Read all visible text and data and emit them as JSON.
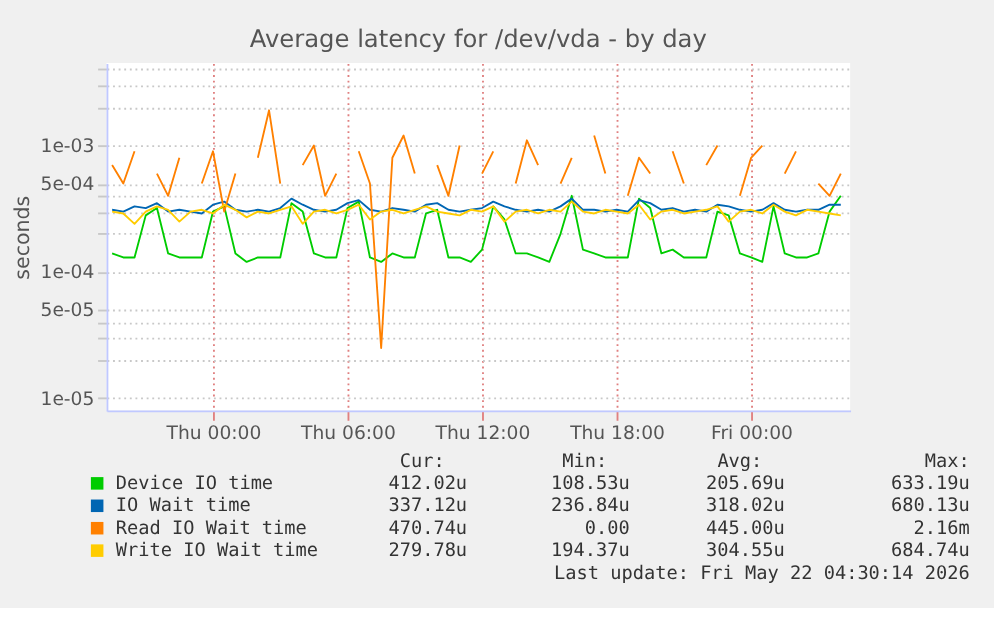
{
  "chart_data": {
    "type": "line",
    "title": "Average latency for /dev/vda - by day",
    "ylabel": "seconds",
    "x": [
      "2026-05-20T19:30",
      "2026-05-20T20:00",
      "2026-05-20T20:30",
      "2026-05-20T21:00",
      "2026-05-20T21:30",
      "2026-05-20T22:00",
      "2026-05-20T22:30",
      "2026-05-20T23:00",
      "2026-05-20T23:30",
      "2026-05-21T00:00",
      "2026-05-21T00:30",
      "2026-05-21T01:00",
      "2026-05-21T01:30",
      "2026-05-21T02:00",
      "2026-05-21T02:30",
      "2026-05-21T03:00",
      "2026-05-21T03:30",
      "2026-05-21T04:00",
      "2026-05-21T04:30",
      "2026-05-21T05:00",
      "2026-05-21T05:30",
      "2026-05-21T06:00",
      "2026-05-21T06:30",
      "2026-05-21T07:00",
      "2026-05-21T07:30",
      "2026-05-21T08:00",
      "2026-05-21T08:30",
      "2026-05-21T09:00",
      "2026-05-21T09:30",
      "2026-05-21T10:00",
      "2026-05-21T10:30",
      "2026-05-21T11:00",
      "2026-05-21T11:30",
      "2026-05-21T12:00",
      "2026-05-21T12:30",
      "2026-05-21T13:00",
      "2026-05-21T13:30",
      "2026-05-21T14:00",
      "2026-05-21T14:30",
      "2026-05-21T15:00",
      "2026-05-21T15:30",
      "2026-05-21T16:00",
      "2026-05-21T16:30",
      "2026-05-21T17:00",
      "2026-05-21T17:30",
      "2026-05-21T18:00",
      "2026-05-21T18:30",
      "2026-05-21T19:00",
      "2026-05-21T19:30",
      "2026-05-21T20:00",
      "2026-05-21T20:30",
      "2026-05-21T21:00",
      "2026-05-21T21:30",
      "2026-05-21T22:00",
      "2026-05-21T22:30",
      "2026-05-21T23:00",
      "2026-05-21T23:30",
      "2026-05-22T00:00",
      "2026-05-22T00:30",
      "2026-05-22T01:00",
      "2026-05-22T01:30",
      "2026-05-22T02:00",
      "2026-05-22T02:30",
      "2026-05-22T03:00",
      "2026-05-22T03:30",
      "2026-05-22T04:00"
    ],
    "series": [
      {
        "name": "Device IO time",
        "color": "#00cc00",
        "values": [
          0.00014,
          0.00013,
          0.00013,
          0.00028,
          0.00032,
          0.00014,
          0.00013,
          0.00013,
          0.00013,
          0.0003,
          0.00033,
          0.00014,
          0.00012,
          0.00013,
          0.00013,
          0.00013,
          0.00035,
          0.0003,
          0.00014,
          0.00013,
          0.00013,
          0.00032,
          0.00036,
          0.00013,
          0.00012,
          0.00014,
          0.00013,
          0.00013,
          0.00029,
          0.00031,
          0.00013,
          0.00013,
          0.00012,
          0.00015,
          0.00033,
          0.00026,
          0.00014,
          0.00014,
          0.00013,
          0.00012,
          0.0002,
          0.0004,
          0.00015,
          0.00014,
          0.00013,
          0.00013,
          0.00013,
          0.00038,
          0.00032,
          0.00014,
          0.00015,
          0.00013,
          0.00013,
          0.00013,
          0.0003,
          0.00028,
          0.00014,
          0.00013,
          0.00012,
          0.00033,
          0.00014,
          0.00013,
          0.00013,
          0.00014,
          0.0003,
          0.0004
        ]
      },
      {
        "name": "IO Wait time",
        "color": "#0066b3",
        "values": [
          0.00031,
          0.0003,
          0.00033,
          0.00032,
          0.00035,
          0.0003,
          0.00031,
          0.0003,
          0.00029,
          0.00034,
          0.00036,
          0.00031,
          0.0003,
          0.00031,
          0.0003,
          0.00032,
          0.00038,
          0.00034,
          0.00031,
          0.0003,
          0.00031,
          0.00035,
          0.00037,
          0.00031,
          0.0003,
          0.00032,
          0.00031,
          0.0003,
          0.00034,
          0.00035,
          0.00031,
          0.0003,
          0.00031,
          0.00032,
          0.00036,
          0.00033,
          0.00031,
          0.0003,
          0.00031,
          0.0003,
          0.00033,
          0.00038,
          0.00031,
          0.00031,
          0.0003,
          0.00031,
          0.0003,
          0.00037,
          0.00035,
          0.00031,
          0.00032,
          0.0003,
          0.00031,
          0.0003,
          0.00034,
          0.00033,
          0.00031,
          0.0003,
          0.00031,
          0.00035,
          0.00031,
          0.0003,
          0.00031,
          0.00031,
          0.00034,
          0.00034
        ]
      },
      {
        "name": "Read IO Wait time",
        "color": "#ff8000",
        "values": [
          0.0007,
          0.0005,
          0.0009,
          null,
          0.0006,
          0.0004,
          0.0008,
          null,
          0.0005,
          0.0009,
          0.0003,
          0.0006,
          null,
          0.0008,
          0.0019,
          0.0005,
          null,
          0.0007,
          0.001,
          0.0004,
          0.0006,
          null,
          0.0009,
          0.0005,
          2.5e-05,
          0.0008,
          0.0012,
          0.0006,
          null,
          0.0007,
          0.0004,
          0.001,
          null,
          0.0006,
          0.0009,
          null,
          0.0005,
          0.0011,
          0.0007,
          null,
          0.0005,
          0.0008,
          null,
          0.0012,
          0.0006,
          null,
          0.0004,
          0.0008,
          0.0006,
          null,
          0.0009,
          0.0005,
          null,
          0.0007,
          0.001,
          null,
          0.0004,
          0.0008,
          0.001,
          null,
          0.0006,
          0.0009,
          null,
          0.0005,
          0.0004,
          0.0006
        ]
      },
      {
        "name": "Write IO Wait time",
        "color": "#ffcc00",
        "values": [
          0.0003,
          0.00029,
          0.00024,
          0.0003,
          0.00033,
          0.00031,
          0.00025,
          0.0003,
          0.00031,
          0.00029,
          0.00034,
          0.00031,
          0.00027,
          0.0003,
          0.00029,
          0.00031,
          0.00033,
          0.00024,
          0.0003,
          0.00031,
          0.00029,
          0.00031,
          0.00034,
          0.00026,
          0.0003,
          0.00031,
          0.00029,
          0.00031,
          0.00033,
          0.0003,
          0.00029,
          0.00028,
          0.00031,
          0.0003,
          0.00033,
          0.00025,
          0.0003,
          0.00031,
          0.00029,
          0.00031,
          0.0003,
          0.00036,
          0.0003,
          0.00029,
          0.00031,
          0.0003,
          0.00029,
          0.00034,
          0.00026,
          0.0003,
          0.00031,
          0.00029,
          0.0003,
          0.00031,
          0.00033,
          0.00025,
          0.0003,
          0.00031,
          0.00029,
          0.00034,
          0.0003,
          0.00028,
          0.00031,
          0.0003,
          0.00029,
          0.00028
        ]
      }
    ],
    "xlim": [
      "2026-05-20T19:15",
      "2026-05-22T04:25"
    ],
    "xticks": [
      {
        "value": "2026-05-21T00:00",
        "label": "Thu 00:00"
      },
      {
        "value": "2026-05-21T06:00",
        "label": "Thu 06:00"
      },
      {
        "value": "2026-05-21T12:00",
        "label": "Thu 12:00"
      },
      {
        "value": "2026-05-21T18:00",
        "label": "Thu 18:00"
      },
      {
        "value": "2026-05-22T00:00",
        "label": "Fri 00:00"
      }
    ],
    "ylim": [
      8e-06,
      0.0045
    ],
    "yticks": [
      {
        "value": 1e-05,
        "label": "1e-05"
      },
      {
        "value": 2e-05,
        "label": null
      },
      {
        "value": 3e-05,
        "label": null
      },
      {
        "value": 4e-05,
        "label": null
      },
      {
        "value": 5e-05,
        "label": "5e-05"
      },
      {
        "value": 0.0001,
        "label": "1e-04"
      },
      {
        "value": 0.0002,
        "label": null
      },
      {
        "value": 0.0003,
        "label": null
      },
      {
        "value": 0.0004,
        "label": null
      },
      {
        "value": 0.0005,
        "label": "5e-04"
      },
      {
        "value": 0.001,
        "label": "1e-03"
      },
      {
        "value": 0.002,
        "label": null
      },
      {
        "value": 0.003,
        "label": null
      },
      {
        "value": 0.004,
        "label": null
      }
    ],
    "log": "y",
    "grid": true,
    "legend": "bottom",
    "line_style": "solid",
    "marker": "none",
    "annotations": [
      "Cur:",
      "Min:",
      "Avg:",
      "Max:",
      "412.02u",
      "108.53u",
      "205.69u",
      "633.19u",
      "337.12u",
      "236.84u",
      "318.02u",
      "680.13u",
      "470.74u",
      "0.00",
      "445.00u",
      "2.16m",
      "279.78u",
      "194.37u",
      "304.55u",
      "684.74u",
      "Last update: Fri May 22 04:30:14 2026"
    ]
  }
}
